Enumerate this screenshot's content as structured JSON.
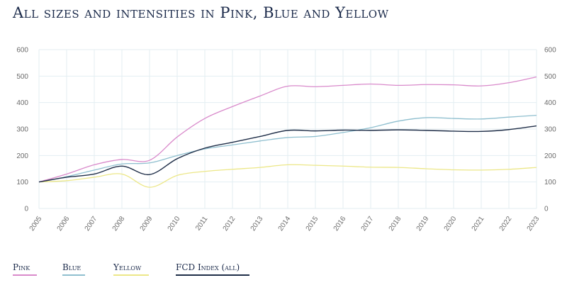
{
  "title": "All sizes and intensities in Pink, Blue and Yellow",
  "chart_data": {
    "type": "line",
    "title": "All sizes and intensities in Pink, Blue and Yellow",
    "x": [
      "2005",
      "2006",
      "2007",
      "2008",
      "2009",
      "2010",
      "2011",
      "2012",
      "2013",
      "2014",
      "2015",
      "2016",
      "2017",
      "2018",
      "2019",
      "2020",
      "2021",
      "2022",
      "2023"
    ],
    "ylim": [
      0,
      600
    ],
    "yticks": [
      0,
      100,
      200,
      300,
      400,
      500,
      600
    ],
    "grid": true,
    "legend_position": "bottom-left",
    "series": [
      {
        "name": "Pink",
        "color": "#d98acb",
        "values": [
          100,
          130,
          165,
          185,
          182,
          270,
          340,
          385,
          425,
          462,
          460,
          465,
          470,
          465,
          468,
          467,
          463,
          475,
          497
        ]
      },
      {
        "name": "Blue",
        "color": "#8fbfcf",
        "values": [
          100,
          120,
          145,
          168,
          172,
          200,
          225,
          240,
          255,
          268,
          272,
          287,
          305,
          330,
          343,
          340,
          338,
          345,
          352
        ]
      },
      {
        "name": "Yellow",
        "color": "#ece788",
        "values": [
          100,
          105,
          118,
          130,
          80,
          125,
          140,
          148,
          155,
          165,
          163,
          160,
          156,
          155,
          150,
          146,
          145,
          148,
          155
        ]
      },
      {
        "name": "FCD Index (all)",
        "color": "#1f2e48",
        "values": [
          100,
          118,
          130,
          160,
          128,
          188,
          228,
          250,
          272,
          295,
          293,
          296,
          295,
          297,
          295,
          292,
          291,
          298,
          312
        ]
      }
    ]
  }
}
